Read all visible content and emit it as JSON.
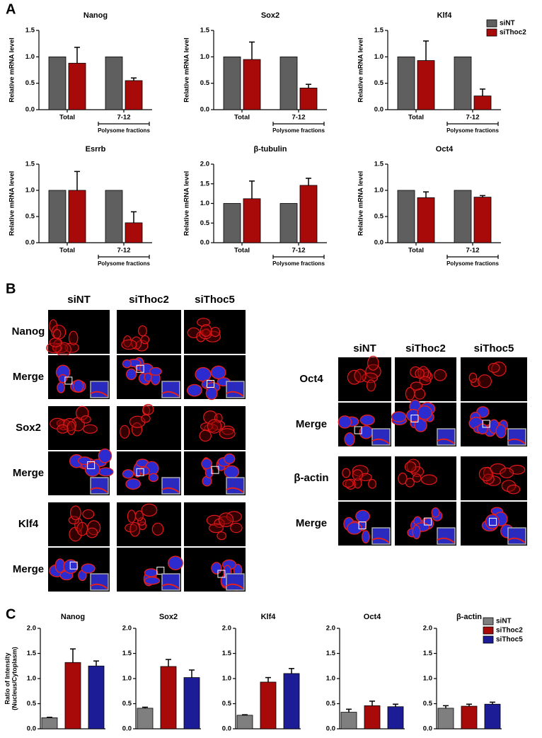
{
  "panel_labels": [
    "A",
    "B",
    "C"
  ],
  "chart_data": [
    {
      "type": "bar",
      "title": "Nanog",
      "ylabel": "Relative mRNA level",
      "categories": [
        "Total",
        "7-12"
      ],
      "annotation": "Polysome fractions",
      "series": [
        {
          "color": "#5f5f5f",
          "values": [
            1,
            1
          ]
        },
        {
          "color": "#a80a0a",
          "values": [
            0.88,
            0.55
          ],
          "errors": [
            0.3,
            0.05
          ]
        }
      ],
      "ylim": [
        0,
        1.5
      ],
      "yticks": [
        {
          "value": 0,
          "label": "0.0"
        },
        0.5,
        {
          "value": 1,
          "label": "1.0"
        },
        1.5
      ]
    },
    {
      "type": "bar",
      "title": "Sox2",
      "ylabel": "Relative mRNA level",
      "categories": [
        "Total",
        "7-12"
      ],
      "annotation": "Polysome fractions",
      "series": [
        {
          "color": "#5f5f5f",
          "values": [
            1,
            1
          ]
        },
        {
          "color": "#a80a0a",
          "values": [
            0.95,
            0.41
          ],
          "errors": [
            0.33,
            0.07
          ]
        }
      ],
      "ylim": [
        0,
        1.5
      ],
      "yticks": [
        {
          "value": 0,
          "label": "0.0"
        },
        0.5,
        {
          "value": 1,
          "label": "1.0"
        },
        1.5
      ]
    },
    {
      "type": "bar",
      "title": "Klf4",
      "ylabel": "Relative mRNA level",
      "categories": [
        "Total",
        "7-12"
      ],
      "annotation": "Polysome fractions",
      "series": [
        {
          "name": "siNT",
          "color": "#5f5f5f",
          "values": [
            1,
            1
          ]
        },
        {
          "name": "siThoc2",
          "color": "#a80a0a",
          "values": [
            0.93,
            0.26
          ],
          "errors": [
            0.37,
            0.13
          ]
        }
      ],
      "ylim": [
        0,
        1.5
      ],
      "yticks": [
        {
          "value": 0,
          "label": "0.0"
        },
        0.5,
        {
          "value": 1,
          "label": "1.0"
        },
        1.5
      ],
      "legend": "upper right"
    },
    {
      "type": "bar",
      "title": "Esrrb",
      "ylabel": "Relative mRNA level",
      "categories": [
        "Total",
        "7-12"
      ],
      "annotation": "Polysome fractions",
      "series": [
        {
          "color": "#5f5f5f",
          "values": [
            1,
            1
          ]
        },
        {
          "color": "#a80a0a",
          "values": [
            1.0,
            0.38
          ],
          "errors": [
            0.36,
            0.21
          ]
        }
      ],
      "ylim": [
        0,
        1.5
      ],
      "yticks": [
        {
          "value": 0,
          "label": "0.0"
        },
        0.5,
        {
          "value": 1,
          "label": "1.0"
        },
        1.5
      ]
    },
    {
      "type": "bar",
      "title": "β-tubulin",
      "ylabel": "Relative mRNA level",
      "categories": [
        "Total",
        "7-12"
      ],
      "annotation": "Polysome fractions",
      "series": [
        {
          "color": "#5f5f5f",
          "values": [
            1,
            1
          ]
        },
        {
          "color": "#a80a0a",
          "values": [
            1.12,
            1.46
          ],
          "errors": [
            0.45,
            0.18
          ]
        }
      ],
      "ylim": [
        0,
        2
      ],
      "yticks": [
        {
          "value": 0,
          "label": "0.0"
        },
        0.5,
        {
          "value": 1,
          "label": "1.0"
        },
        1.5,
        {
          "value": 2,
          "label": "2.0"
        }
      ]
    },
    {
      "type": "bar",
      "title": "Oct4",
      "ylabel": "Relative mRNA level",
      "categories": [
        "Total",
        "7-12"
      ],
      "annotation": "Polysome fractions",
      "series": [
        {
          "color": "#5f5f5f",
          "values": [
            1,
            1
          ]
        },
        {
          "color": "#a80a0a",
          "values": [
            0.86,
            0.87
          ],
          "errors": [
            0.11,
            0.03
          ]
        }
      ],
      "ylim": [
        0,
        1.5
      ],
      "yticks": [
        {
          "value": 0,
          "label": "0.0"
        },
        0.5,
        {
          "value": 1,
          "label": "1.0"
        },
        1.5
      ]
    },
    {
      "type": "bar",
      "title": "Nanog",
      "ylabel": [
        "Ratio of Intensity",
        "(Nucleus/Cytoplasm)"
      ],
      "series": [
        {
          "color": "#7f7f7f",
          "values": [
            0.22
          ],
          "errors": [
            0.01
          ]
        },
        {
          "color": "#a80a0a",
          "values": [
            1.32
          ],
          "errors": [
            0.27
          ]
        },
        {
          "color": "#1c1c96",
          "values": [
            1.25
          ],
          "errors": [
            0.1
          ]
        }
      ],
      "ylim": [
        0,
        2
      ],
      "yticks": [
        {
          "value": 0,
          "label": "0.0"
        },
        0.5,
        {
          "value": 1,
          "label": "1.0"
        },
        1.5,
        {
          "value": 2,
          "label": "2.0"
        }
      ]
    },
    {
      "type": "bar",
      "title": "Sox2",
      "series": [
        {
          "color": "#7f7f7f",
          "values": [
            0.41
          ],
          "errors": [
            0.02
          ]
        },
        {
          "color": "#a80a0a",
          "values": [
            1.24
          ],
          "errors": [
            0.14
          ]
        },
        {
          "color": "#1c1c96",
          "values": [
            1.02
          ],
          "errors": [
            0.15
          ]
        }
      ],
      "ylim": [
        0,
        2
      ],
      "yticks": [
        {
          "value": 0,
          "label": "0.0"
        },
        0.5,
        {
          "value": 1,
          "label": "1.0"
        },
        1.5,
        {
          "value": 2,
          "label": "2.0"
        }
      ]
    },
    {
      "type": "bar",
      "title": "Klf4",
      "series": [
        {
          "color": "#7f7f7f",
          "values": [
            0.27
          ],
          "errors": [
            0.01
          ]
        },
        {
          "color": "#a80a0a",
          "values": [
            0.93
          ],
          "errors": [
            0.09
          ]
        },
        {
          "color": "#1c1c96",
          "values": [
            1.1
          ],
          "errors": [
            0.1
          ]
        }
      ],
      "ylim": [
        0,
        2
      ],
      "yticks": [
        {
          "value": 0,
          "label": "0.0"
        },
        0.5,
        {
          "value": 1,
          "label": "1.0"
        },
        1.5,
        {
          "value": 2,
          "label": "2.0"
        }
      ]
    },
    {
      "type": "bar",
      "title": "Oct4",
      "series": [
        {
          "color": "#7f7f7f",
          "values": [
            0.33
          ],
          "errors": [
            0.06
          ]
        },
        {
          "color": "#a80a0a",
          "values": [
            0.46
          ],
          "errors": [
            0.09
          ]
        },
        {
          "color": "#1c1c96",
          "values": [
            0.44
          ],
          "errors": [
            0.05
          ]
        }
      ],
      "ylim": [
        0,
        2
      ],
      "yticks": [
        {
          "value": 0,
          "label": "0.0"
        },
        0.5,
        {
          "value": 1,
          "label": "1.0"
        },
        1.5,
        {
          "value": 2,
          "label": "2.0"
        }
      ]
    },
    {
      "type": "bar",
      "title": "β-actin",
      "series": [
        {
          "name": "siNT",
          "color": "#7f7f7f",
          "values": [
            0.41
          ],
          "errors": [
            0.05
          ]
        },
        {
          "name": "siThoc2",
          "color": "#a80a0a",
          "values": [
            0.45
          ],
          "errors": [
            0.04
          ]
        },
        {
          "name": "siThoc5",
          "color": "#1c1c96",
          "values": [
            0.49
          ],
          "errors": [
            0.04
          ]
        }
      ],
      "ylim": [
        0,
        2
      ],
      "yticks": [
        {
          "value": 0,
          "label": "0.0"
        },
        0.5,
        {
          "value": 1,
          "label": "1.0"
        },
        1.5,
        {
          "value": 2,
          "label": "2.0"
        }
      ],
      "legend": "upper right"
    }
  ],
  "microscopy": {
    "left": {
      "columns": [
        "siNT",
        "siThoc2",
        "siThoc5"
      ],
      "rows": [
        "Nanog",
        "Merge",
        "Sox2",
        "Merge",
        "Klf4",
        "Merge"
      ]
    },
    "right": {
      "columns": [
        "siNT",
        "siThoc2",
        "siThoc5"
      ],
      "rows": [
        "Oct4",
        "Merge",
        "β-actin",
        "Merge"
      ]
    }
  }
}
